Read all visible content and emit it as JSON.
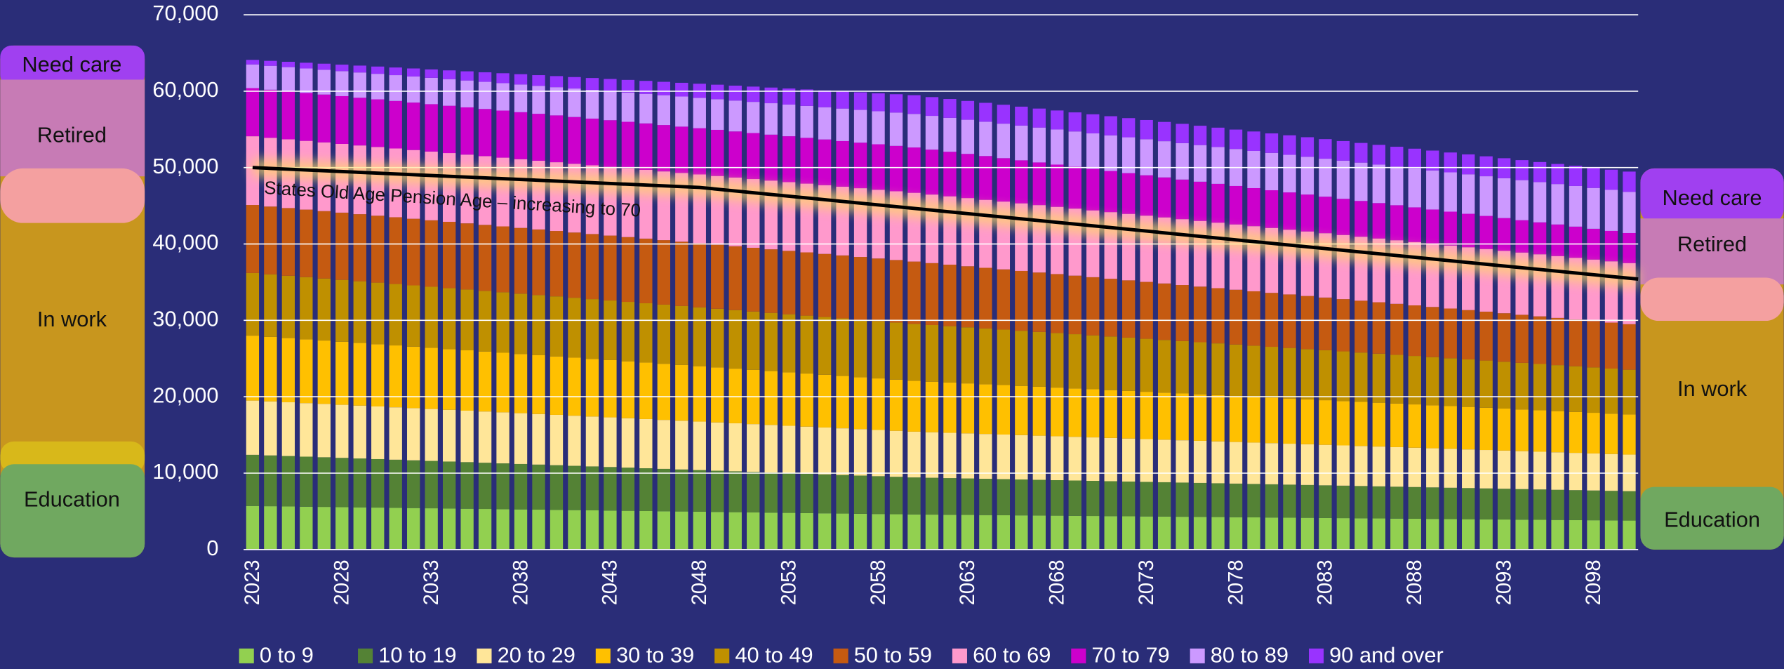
{
  "chart_data": {
    "type": "stacked_bar",
    "categories": [
      "2023",
      null,
      null,
      null,
      null,
      "2028",
      null,
      null,
      null,
      null,
      "2033",
      null,
      null,
      null,
      null,
      "2038",
      null,
      null,
      null,
      null,
      "2043",
      null,
      null,
      null,
      null,
      "2048",
      null,
      null,
      null,
      null,
      "2053",
      null,
      null,
      null,
      null,
      "2058",
      null,
      null,
      null,
      null,
      "2063",
      null,
      null,
      null,
      null,
      "2068",
      null,
      null,
      null,
      null,
      "2073",
      null,
      null,
      null,
      null,
      "2078",
      null,
      null,
      null,
      null,
      "2083",
      null,
      null,
      null,
      null,
      "2088",
      null,
      null,
      null,
      null,
      "2093",
      null,
      null,
      null,
      null,
      "2098",
      null,
      null
    ],
    "ylim": [
      0,
      70000
    ],
    "yticks": [
      0,
      {
        "value": 10000,
        "label": "10,000"
      },
      {
        "value": 20000,
        "label": "20,000"
      },
      {
        "value": 30000,
        "label": "30,000"
      },
      {
        "value": 40000,
        "label": "40,000"
      },
      {
        "value": 50000,
        "label": "50,000"
      },
      {
        "value": 60000,
        "label": "60,000"
      },
      {
        "value": 70000,
        "label": "70,000"
      }
    ],
    "grid": true,
    "legend": "bottom",
    "series": [
      {
        "name": "0 to 9",
        "color": "#92d050",
        "values": [
          5700,
          5670,
          5640,
          5610,
          5580,
          5550,
          5520,
          5490,
          5460,
          5430,
          5400,
          5370,
          5340,
          5310,
          5280,
          5250,
          5220,
          5190,
          5160,
          5130,
          5100,
          5070,
          5040,
          5010,
          4980,
          4950,
          4920,
          4890,
          4860,
          4830,
          4800,
          4770,
          4740,
          4710,
          4680,
          4650,
          4620,
          4590,
          4570,
          4550,
          4530,
          4510,
          4490,
          4470,
          4450,
          4430,
          4410,
          4390,
          4370,
          4350,
          4330,
          4310,
          4290,
          4270,
          4250,
          4230,
          4210,
          4190,
          4170,
          4150,
          4130,
          4110,
          4090,
          4070,
          4050,
          4030,
          4010,
          3990,
          3970,
          3950,
          3930,
          3910,
          3890,
          3870,
          3850,
          3830,
          3810,
          3790
        ]
      },
      {
        "name": "10 to 19",
        "color": "#548235",
        "values": [
          6700,
          6650,
          6600,
          6550,
          6500,
          6450,
          6400,
          6350,
          6300,
          6250,
          6200,
          6150,
          6100,
          6050,
          6000,
          5950,
          5900,
          5850,
          5800,
          5750,
          5700,
          5650,
          5600,
          5550,
          5500,
          5450,
          5400,
          5350,
          5300,
          5250,
          5200,
          5150,
          5100,
          5050,
          5000,
          4950,
          4900,
          4850,
          4825,
          4800,
          4775,
          4750,
          4725,
          4700,
          4675,
          4650,
          4625,
          4600,
          4575,
          4550,
          4525,
          4500,
          4475,
          4450,
          4425,
          4400,
          4375,
          4350,
          4325,
          4300,
          4275,
          4250,
          4225,
          4200,
          4175,
          4150,
          4125,
          4100,
          4075,
          4050,
          4025,
          4000,
          3975,
          3950,
          3925,
          3900,
          3875,
          3850
        ]
      },
      {
        "name": "20 to 29",
        "color": "#ffe699",
        "values": [
          7100,
          7070,
          7040,
          7010,
          6980,
          6950,
          6920,
          6890,
          6860,
          6830,
          6800,
          6770,
          6740,
          6710,
          6680,
          6650,
          6620,
          6590,
          6560,
          6530,
          6500,
          6470,
          6440,
          6410,
          6380,
          6350,
          6320,
          6290,
          6260,
          6230,
          6200,
          6170,
          6140,
          6110,
          6080,
          6050,
          6020,
          5990,
          5960,
          5930,
          5900,
          5870,
          5840,
          5810,
          5780,
          5750,
          5720,
          5690,
          5660,
          5630,
          5600,
          5570,
          5540,
          5510,
          5480,
          5450,
          5420,
          5390,
          5360,
          5330,
          5300,
          5270,
          5240,
          5210,
          5180,
          5150,
          5120,
          5090,
          5060,
          5030,
          5000,
          4970,
          4940,
          4910,
          4880,
          4850,
          4820,
          4790
        ]
      },
      {
        "name": "30 to 39",
        "color": "#ffc000",
        "values": [
          8500,
          8450,
          8400,
          8350,
          8300,
          8250,
          8200,
          8150,
          8100,
          8050,
          8000,
          7950,
          7900,
          7850,
          7800,
          7750,
          7700,
          7650,
          7600,
          7550,
          7500,
          7450,
          7400,
          7350,
          7300,
          7250,
          7200,
          7150,
          7100,
          7050,
          7000,
          6950,
          6900,
          6850,
          6800,
          6750,
          6700,
          6650,
          6615,
          6580,
          6545,
          6510,
          6475,
          6440,
          6405,
          6370,
          6335,
          6300,
          6265,
          6230,
          6195,
          6160,
          6125,
          6090,
          6055,
          6020,
          5985,
          5950,
          5915,
          5880,
          5845,
          5810,
          5775,
          5740,
          5705,
          5670,
          5635,
          5600,
          5565,
          5530,
          5495,
          5460,
          5425,
          5390,
          5355,
          5320,
          5285,
          5250
        ]
      },
      {
        "name": "40 to 49",
        "color": "#bf9000",
        "values": [
          8200,
          8180,
          8160,
          8140,
          8120,
          8100,
          8080,
          8060,
          8040,
          8020,
          8000,
          7980,
          7960,
          7940,
          7920,
          7900,
          7880,
          7860,
          7840,
          7820,
          7800,
          7780,
          7760,
          7740,
          7720,
          7700,
          7680,
          7660,
          7640,
          7620,
          7600,
          7580,
          7560,
          7540,
          7520,
          7500,
          7480,
          7460,
          7420,
          7380,
          7340,
          7300,
          7260,
          7220,
          7180,
          7140,
          7100,
          7060,
          7020,
          6980,
          6940,
          6900,
          6860,
          6820,
          6780,
          6740,
          6700,
          6660,
          6620,
          6580,
          6540,
          6500,
          6460,
          6420,
          6380,
          6340,
          6300,
          6260,
          6220,
          6180,
          6140,
          6100,
          6060,
          6020,
          5980,
          5940,
          5900,
          5860
        ]
      },
      {
        "name": "50 to 59",
        "color": "#c55a11",
        "values": [
          8900,
          8880,
          8860,
          8840,
          8820,
          8800,
          8780,
          8760,
          8740,
          8720,
          8700,
          8680,
          8660,
          8640,
          8620,
          8600,
          8580,
          8560,
          8540,
          8520,
          8500,
          8480,
          8460,
          8440,
          8420,
          8400,
          8380,
          8360,
          8340,
          8320,
          8300,
          8280,
          8260,
          8240,
          8220,
          8200,
          8180,
          8160,
          8105,
          8050,
          7995,
          7940,
          7885,
          7830,
          7775,
          7720,
          7665,
          7610,
          7555,
          7500,
          7445,
          7390,
          7335,
          7280,
          7225,
          7170,
          7115,
          7060,
          7005,
          6950,
          6895,
          6840,
          6785,
          6730,
          6675,
          6620,
          6565,
          6510,
          6455,
          6400,
          6345,
          6290,
          6235,
          6180,
          6125,
          6070,
          6015,
          5960
        ]
      },
      {
        "name": "60 to 69",
        "color": "#ff99cc",
        "values": [
          9000,
          9000,
          9000,
          9000,
          9000,
          9000,
          9000,
          9000,
          9000,
          9000,
          9000,
          9000,
          9000,
          9000,
          9000,
          9000,
          9000,
          9000,
          9000,
          9000,
          9000,
          9000,
          9000,
          9000,
          9000,
          9000,
          9000,
          9000,
          9000,
          9000,
          9000,
          9000,
          9000,
          9000,
          9000,
          9000,
          9000,
          9000,
          8975,
          8950,
          8925,
          8900,
          8875,
          8850,
          8825,
          8800,
          8775,
          8750,
          8725,
          8700,
          8675,
          8650,
          8625,
          8600,
          8575,
          8550,
          8525,
          8500,
          8475,
          8450,
          8425,
          8400,
          8375,
          8350,
          8325,
          8300,
          8275,
          8250,
          8225,
          8200,
          8175,
          8150,
          8125,
          8100,
          8075,
          8050,
          8025,
          8000
        ]
      },
      {
        "name": "70 to 79",
        "color": "#cc00cc",
        "values": [
          6300,
          6290,
          6280,
          6270,
          6260,
          6250,
          6240,
          6230,
          6220,
          6210,
          6200,
          6190,
          6180,
          6170,
          6160,
          6150,
          6140,
          6130,
          6120,
          6110,
          6100,
          6090,
          6080,
          6070,
          6060,
          6050,
          6040,
          6030,
          6020,
          6010,
          6000,
          5990,
          5980,
          5970,
          5960,
          5950,
          5940,
          5930,
          5880,
          5830,
          5780,
          5730,
          5680,
          5630,
          5580,
          5530,
          5480,
          5430,
          5380,
          5330,
          5280,
          5230,
          5180,
          5130,
          5080,
          5030,
          4980,
          4930,
          4880,
          4830,
          4780,
          4730,
          4680,
          4630,
          4580,
          4530,
          4480,
          4430,
          4380,
          4330,
          4280,
          4230,
          4180,
          4130,
          4080,
          4030,
          3980,
          3930
        ]
      },
      {
        "name": "80 to 89",
        "color": "#cc99ff",
        "values": [
          3100,
          3135,
          3170,
          3205,
          3240,
          3275,
          3310,
          3345,
          3380,
          3415,
          3450,
          3485,
          3520,
          3555,
          3590,
          3625,
          3660,
          3695,
          3730,
          3765,
          3800,
          3835,
          3870,
          3905,
          3940,
          3975,
          4010,
          4045,
          4080,
          4115,
          4150,
          4185,
          4220,
          4255,
          4290,
          4325,
          4360,
          4395,
          4420,
          4445,
          4470,
          4495,
          4520,
          4545,
          4570,
          4595,
          4620,
          4645,
          4670,
          4695,
          4720,
          4745,
          4770,
          4795,
          4820,
          4845,
          4870,
          4895,
          4920,
          4945,
          4970,
          4995,
          5020,
          5045,
          5070,
          5095,
          5120,
          5145,
          5170,
          5195,
          5220,
          5245,
          5270,
          5295,
          5320,
          5345,
          5370,
          5395
        ]
      },
      {
        "name": "90 and over",
        "color": "#9933ff",
        "values": [
          600,
          650,
          700,
          750,
          800,
          850,
          900,
          950,
          1000,
          1050,
          1100,
          1150,
          1200,
          1250,
          1300,
          1350,
          1400,
          1450,
          1500,
          1550,
          1600,
          1650,
          1700,
          1750,
          1800,
          1850,
          1900,
          1950,
          2000,
          2050,
          2100,
          2150,
          2200,
          2250,
          2300,
          2350,
          2400,
          2450,
          2455,
          2460,
          2465,
          2470,
          2475,
          2480,
          2485,
          2490,
          2495,
          2500,
          2505,
          2510,
          2515,
          2520,
          2525,
          2530,
          2535,
          2540,
          2545,
          2550,
          2555,
          2560,
          2565,
          2570,
          2575,
          2580,
          2585,
          2590,
          2595,
          2600,
          2605,
          2610,
          2615,
          2620,
          2625,
          2630,
          2635,
          2640,
          2645,
          2650
        ]
      }
    ],
    "annotation": {
      "text": "States Old Age Pension Age – increasing to 70",
      "line_values": [
        50000,
        47400,
        35400
      ]
    },
    "side_labels_left": [
      "Need care",
      "Retired",
      "In work",
      "Education"
    ],
    "side_labels_right": [
      "Need care",
      "Retired",
      "In work",
      "Education"
    ]
  }
}
